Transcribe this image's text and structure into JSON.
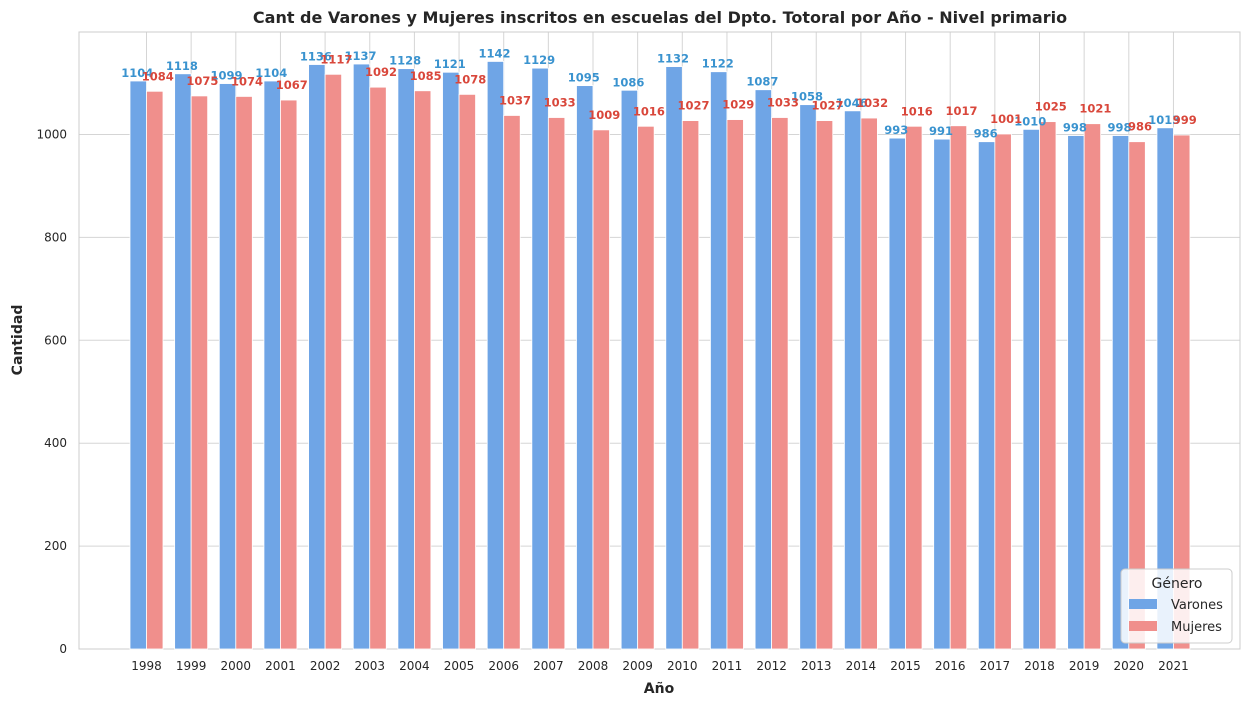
{
  "chart_data": {
    "type": "bar",
    "title": "Cant de Varones y Mujeres inscritos en escuelas del Dpto. Totoral por Año - Nivel primario",
    "xlabel": "Año",
    "ylabel": "Cantidad",
    "categories": [
      "1998",
      "1999",
      "2000",
      "2001",
      "2002",
      "2003",
      "2004",
      "2005",
      "2006",
      "2007",
      "2008",
      "2009",
      "2010",
      "2011",
      "2012",
      "2013",
      "2014",
      "2015",
      "2016",
      "2017",
      "2018",
      "2019",
      "2020",
      "2021"
    ],
    "series": [
      {
        "name": "Varones",
        "color": "#6fa5e6",
        "label_color": "#3a93cf",
        "values": [
          1104,
          1118,
          1099,
          1104,
          1136,
          1137,
          1128,
          1121,
          1142,
          1129,
          1095,
          1086,
          1132,
          1122,
          1087,
          1058,
          1046,
          993,
          991,
          986,
          1010,
          998,
          998,
          1013
        ]
      },
      {
        "name": "Mujeres",
        "color": "#f08f8c",
        "label_color": "#d9473b",
        "values": [
          1084,
          1075,
          1074,
          1067,
          1117,
          1092,
          1085,
          1078,
          1037,
          1033,
          1009,
          1016,
          1027,
          1029,
          1033,
          1027,
          1032,
          1016,
          1017,
          1001,
          1025,
          1021,
          986,
          999
        ]
      }
    ],
    "yticks": [
      0,
      200,
      400,
      600,
      800,
      1000
    ],
    "ylim": [
      0,
      1200
    ],
    "grid": true,
    "legend": {
      "title": "Género",
      "placement": "bottom-right"
    }
  }
}
